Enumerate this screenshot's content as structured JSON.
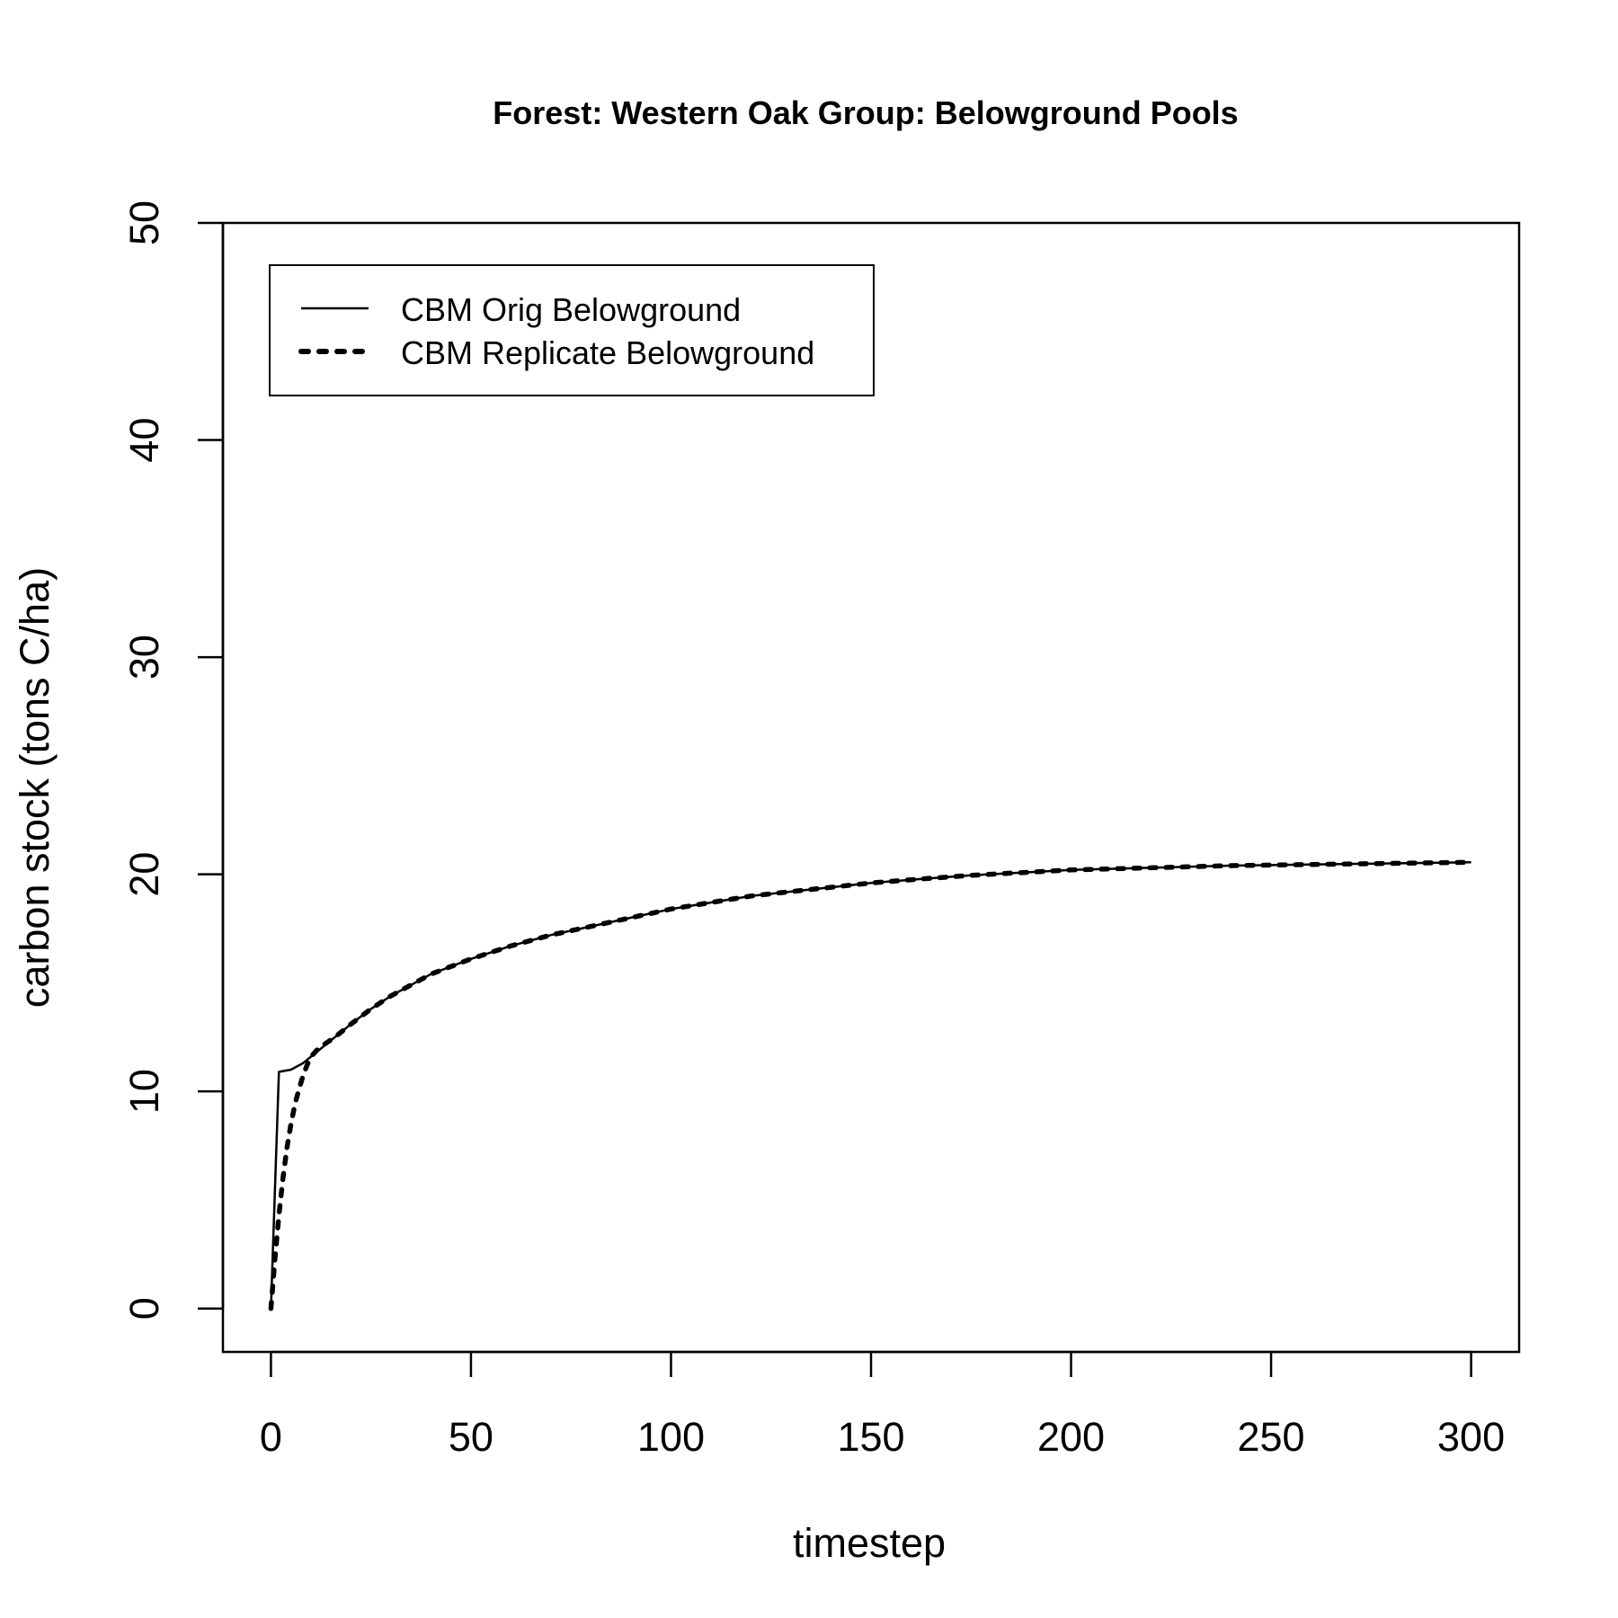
{
  "chart_data": {
    "type": "line",
    "title": "Forest: Western Oak Group: Belowground Pools",
    "xlabel": "timestep",
    "ylabel": "carbon stock (tons C/ha)",
    "xlim": [
      -12,
      312
    ],
    "ylim": [
      -2,
      50
    ],
    "x_ticks": [
      "0",
      "50",
      "100",
      "150",
      "200",
      "250",
      "300"
    ],
    "y_ticks": [
      "0",
      "10",
      "20",
      "30",
      "40",
      "50"
    ],
    "grid": false,
    "legend_position": "top-left",
    "series": [
      {
        "name": "CBM Orig Belowground",
        "style": "solid",
        "color": "#000000",
        "x": [
          0,
          2,
          5,
          8,
          12,
          16,
          20,
          25,
          30,
          35,
          40,
          50,
          60,
          70,
          80,
          90,
          100,
          110,
          120,
          130,
          140,
          150,
          160,
          175,
          190,
          200,
          220,
          240,
          260,
          280,
          300
        ],
        "y": [
          0,
          10.9,
          11.0,
          11.3,
          11.9,
          12.5,
          13.1,
          13.8,
          14.4,
          14.9,
          15.4,
          16.1,
          16.7,
          17.2,
          17.6,
          18.0,
          18.4,
          18.7,
          19.0,
          19.2,
          19.4,
          19.6,
          19.75,
          19.95,
          20.1,
          20.2,
          20.3,
          20.4,
          20.45,
          20.5,
          20.55
        ]
      },
      {
        "name": "CBM Replicate Belowground",
        "style": "dotted",
        "color": "#000000",
        "x": [
          0,
          1,
          2,
          3,
          4,
          5,
          6,
          7,
          8,
          9,
          10,
          12,
          16,
          20,
          25,
          30,
          35,
          40,
          50,
          60,
          70,
          80,
          90,
          100,
          110,
          120,
          130,
          140,
          150,
          160,
          175,
          190,
          200,
          220,
          240,
          260,
          280,
          300
        ],
        "y": [
          0,
          2.3,
          4.3,
          6.0,
          7.4,
          8.5,
          9.4,
          10.1,
          10.7,
          11.2,
          11.6,
          12.0,
          12.5,
          13.1,
          13.8,
          14.4,
          14.9,
          15.4,
          16.1,
          16.7,
          17.2,
          17.6,
          18.0,
          18.4,
          18.7,
          19.0,
          19.2,
          19.4,
          19.6,
          19.75,
          19.95,
          20.1,
          20.2,
          20.3,
          20.4,
          20.45,
          20.5,
          20.55
        ]
      }
    ]
  }
}
